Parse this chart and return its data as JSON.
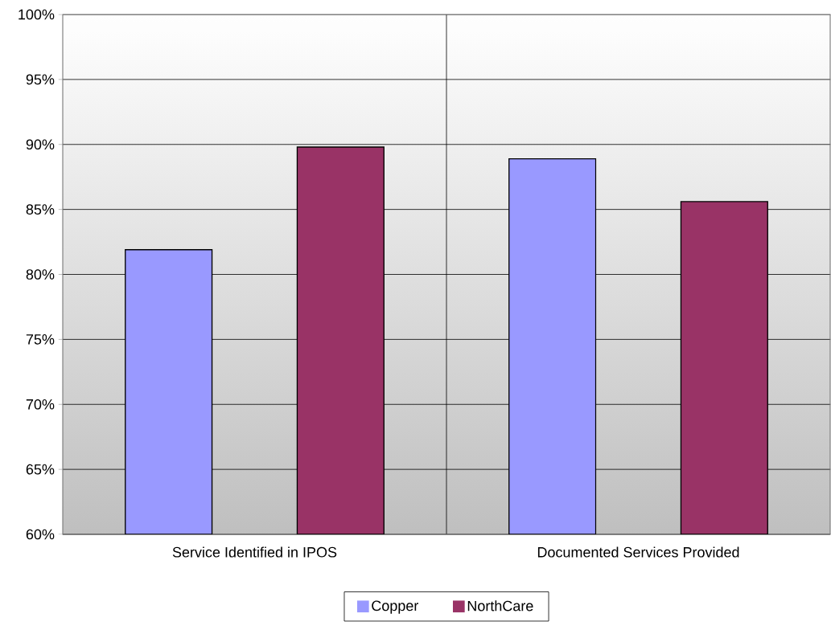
{
  "chart_data": {
    "type": "bar",
    "categories": [
      "Service Identified in IPOS",
      "Documented Services Provided"
    ],
    "series": [
      {
        "name": "Copper",
        "color": "#9999ff",
        "values": [
          81.9,
          88.9
        ]
      },
      {
        "name": "NorthCare",
        "color": "#993366",
        "values": [
          89.8,
          85.6
        ]
      }
    ],
    "ylim": [
      60,
      100
    ],
    "yticks": [
      {
        "value": 60,
        "label": "60%"
      },
      {
        "value": 65,
        "label": "65%"
      },
      {
        "value": 70,
        "label": "70%"
      },
      {
        "value": 75,
        "label": "75%"
      },
      {
        "value": 80,
        "label": "80%"
      },
      {
        "value": 85,
        "label": "85%"
      },
      {
        "value": 90,
        "label": "90%"
      },
      {
        "value": 95,
        "label": "95%"
      },
      {
        "value": 100,
        "label": "100%"
      }
    ],
    "grid": true,
    "legend": "bottom"
  }
}
